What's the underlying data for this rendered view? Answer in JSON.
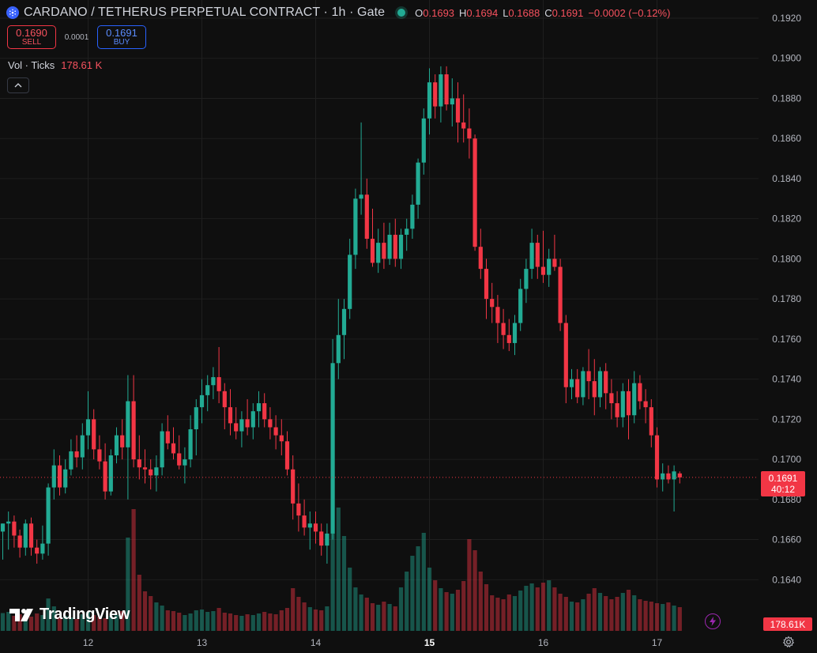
{
  "header": {
    "title": "CARDANO / TETHERUS PERPETUAL CONTRACT · 1h · Gate",
    "symbol_icon": "cardano-icon",
    "ohlc": {
      "o_label": "O",
      "o_value": "0.1693",
      "h_label": "H",
      "h_value": "0.1694",
      "l_label": "L",
      "l_value": "0.1688",
      "c_label": "C",
      "c_value": "0.1691",
      "change": "−0.0002 (−0.12%)"
    }
  },
  "trade": {
    "sell_price": "0.1690",
    "sell_label": "SELL",
    "spread": "0.0001",
    "buy_price": "0.1691",
    "buy_label": "BUY"
  },
  "volume_legend": {
    "label": "Vol · Ticks",
    "value": "178.61 K"
  },
  "price_badge": {
    "price": "0.1691",
    "countdown": "40:12"
  },
  "volume_badge": {
    "value": "178.61K"
  },
  "branding": {
    "logo_text": "TradingView"
  },
  "colors": {
    "up": "#22ab94",
    "down": "#f23645",
    "background": "#0f0f0f",
    "grid": "#1f1f1f",
    "axis_text": "#b2b5be"
  },
  "chart_data": {
    "type": "candlestick",
    "interval": "1h",
    "y_axis": {
      "min": 0.162,
      "max": 0.192,
      "ticks": [
        "0.1920",
        "0.1900",
        "0.1880",
        "0.1860",
        "0.1840",
        "0.1820",
        "0.1800",
        "0.1780",
        "0.1760",
        "0.1740",
        "0.1720",
        "0.1700",
        "0.1680",
        "0.1660",
        "0.1640"
      ]
    },
    "x_axis": {
      "labels": [
        {
          "text": "12",
          "index": 15
        },
        {
          "text": "13",
          "index": 35
        },
        {
          "text": "14",
          "index": 55
        },
        {
          "text": "15",
          "index": 75,
          "bold": true
        },
        {
          "text": "16",
          "index": 95
        },
        {
          "text": "17",
          "index": 115
        }
      ]
    },
    "current_price": 0.1691,
    "ohlc": [
      [
        0.1664,
        0.1668,
        0.165,
        0.1668
      ],
      [
        0.1668,
        0.1674,
        0.1655,
        0.1669
      ],
      [
        0.1669,
        0.1672,
        0.1656,
        0.1662
      ],
      [
        0.1662,
        0.1665,
        0.1651,
        0.1656
      ],
      [
        0.1656,
        0.167,
        0.1652,
        0.1668
      ],
      [
        0.1668,
        0.1671,
        0.1652,
        0.1656
      ],
      [
        0.1656,
        0.166,
        0.1648,
        0.1653
      ],
      [
        0.1653,
        0.1667,
        0.165,
        0.1658
      ],
      [
        0.1658,
        0.1688,
        0.1652,
        0.1686
      ],
      [
        0.1686,
        0.1705,
        0.168,
        0.1697
      ],
      [
        0.1697,
        0.1702,
        0.1682,
        0.1686
      ],
      [
        0.1686,
        0.17,
        0.1683,
        0.1695
      ],
      [
        0.1695,
        0.171,
        0.1692,
        0.1704
      ],
      [
        0.1704,
        0.1712,
        0.1696,
        0.1701
      ],
      [
        0.1701,
        0.1718,
        0.1695,
        0.1712
      ],
      [
        0.1712,
        0.1734,
        0.1705,
        0.172
      ],
      [
        0.172,
        0.1725,
        0.17,
        0.1705
      ],
      [
        0.1705,
        0.1712,
        0.1695,
        0.1699
      ],
      [
        0.1699,
        0.1708,
        0.168,
        0.1684
      ],
      [
        0.1684,
        0.1705,
        0.1682,
        0.1702
      ],
      [
        0.1702,
        0.1716,
        0.1698,
        0.1712
      ],
      [
        0.1712,
        0.172,
        0.17,
        0.1706
      ],
      [
        0.1706,
        0.1742,
        0.168,
        0.1729
      ],
      [
        0.1729,
        0.1742,
        0.1696,
        0.17
      ],
      [
        0.17,
        0.1712,
        0.169,
        0.1696
      ],
      [
        0.1696,
        0.1705,
        0.1688,
        0.1695
      ],
      [
        0.1695,
        0.17,
        0.1685,
        0.1692
      ],
      [
        0.1692,
        0.1702,
        0.1684,
        0.1696
      ],
      [
        0.1696,
        0.1718,
        0.1692,
        0.1714
      ],
      [
        0.1714,
        0.1722,
        0.1705,
        0.1708
      ],
      [
        0.1708,
        0.1716,
        0.17,
        0.1703
      ],
      [
        0.1703,
        0.1712,
        0.1695,
        0.1697
      ],
      [
        0.1697,
        0.1706,
        0.1688,
        0.17
      ],
      [
        0.17,
        0.1722,
        0.1696,
        0.1715
      ],
      [
        0.1715,
        0.173,
        0.1702,
        0.1726
      ],
      [
        0.1726,
        0.174,
        0.1718,
        0.1732
      ],
      [
        0.1732,
        0.1742,
        0.1724,
        0.1737
      ],
      [
        0.1737,
        0.1746,
        0.173,
        0.1741
      ],
      [
        0.1741,
        0.1756,
        0.1728,
        0.1734
      ],
      [
        0.1734,
        0.1738,
        0.1715,
        0.1726
      ],
      [
        0.1726,
        0.1735,
        0.1712,
        0.1718
      ],
      [
        0.1718,
        0.1726,
        0.171,
        0.1714
      ],
      [
        0.1714,
        0.1724,
        0.1706,
        0.172
      ],
      [
        0.172,
        0.173,
        0.1712,
        0.1716
      ],
      [
        0.1716,
        0.1728,
        0.171,
        0.1724
      ],
      [
        0.1724,
        0.1734,
        0.1716,
        0.1728
      ],
      [
        0.1728,
        0.1733,
        0.1716,
        0.172
      ],
      [
        0.172,
        0.1726,
        0.171,
        0.1716
      ],
      [
        0.1716,
        0.1722,
        0.1705,
        0.1712
      ],
      [
        0.1712,
        0.172,
        0.1702,
        0.1709
      ],
      [
        0.1709,
        0.1714,
        0.1692,
        0.1695
      ],
      [
        0.1695,
        0.1702,
        0.167,
        0.1678
      ],
      [
        0.1678,
        0.1688,
        0.1664,
        0.1672
      ],
      [
        0.1672,
        0.168,
        0.1662,
        0.1666
      ],
      [
        0.1666,
        0.1674,
        0.1655,
        0.1668
      ],
      [
        0.1668,
        0.1674,
        0.1658,
        0.1664
      ],
      [
        0.1664,
        0.1668,
        0.1652,
        0.1657
      ],
      [
        0.1657,
        0.1668,
        0.1648,
        0.1663
      ],
      [
        0.1663,
        0.176,
        0.166,
        0.1748
      ],
      [
        0.1748,
        0.178,
        0.174,
        0.1762
      ],
      [
        0.1762,
        0.178,
        0.175,
        0.1775
      ],
      [
        0.1775,
        0.181,
        0.177,
        0.1802
      ],
      [
        0.1802,
        0.1835,
        0.1795,
        0.183
      ],
      [
        0.183,
        0.1868,
        0.1822,
        0.1832
      ],
      [
        0.1832,
        0.184,
        0.1805,
        0.181
      ],
      [
        0.181,
        0.1825,
        0.1796,
        0.1798
      ],
      [
        0.1798,
        0.1815,
        0.1793,
        0.1808
      ],
      [
        0.1808,
        0.1818,
        0.1795,
        0.18
      ],
      [
        0.18,
        0.1818,
        0.1797,
        0.1812
      ],
      [
        0.1812,
        0.182,
        0.1796,
        0.18
      ],
      [
        0.18,
        0.1815,
        0.1795,
        0.1812
      ],
      [
        0.1812,
        0.182,
        0.1804,
        0.1815
      ],
      [
        0.1815,
        0.1832,
        0.181,
        0.1827
      ],
      [
        0.1827,
        0.185,
        0.182,
        0.1848
      ],
      [
        0.1848,
        0.1875,
        0.1842,
        0.187
      ],
      [
        0.187,
        0.1895,
        0.1862,
        0.1888
      ],
      [
        0.1888,
        0.1892,
        0.187,
        0.1876
      ],
      [
        0.1876,
        0.1896,
        0.1868,
        0.1892
      ],
      [
        0.1892,
        0.1896,
        0.1874,
        0.1877
      ],
      [
        0.1877,
        0.189,
        0.1866,
        0.188
      ],
      [
        0.188,
        0.1888,
        0.1858,
        0.1868
      ],
      [
        0.1868,
        0.1882,
        0.1858,
        0.1865
      ],
      [
        0.1865,
        0.1875,
        0.185,
        0.186
      ],
      [
        0.186,
        0.1862,
        0.1804,
        0.1806
      ],
      [
        0.1806,
        0.1815,
        0.179,
        0.1795
      ],
      [
        0.1795,
        0.18,
        0.177,
        0.178
      ],
      [
        0.178,
        0.1788,
        0.1768,
        0.1776
      ],
      [
        0.1776,
        0.1782,
        0.1758,
        0.1768
      ],
      [
        0.1768,
        0.1775,
        0.1755,
        0.1762
      ],
      [
        0.1762,
        0.177,
        0.1754,
        0.1758
      ],
      [
        0.1758,
        0.1772,
        0.1752,
        0.1768
      ],
      [
        0.1768,
        0.179,
        0.1764,
        0.1785
      ],
      [
        0.1785,
        0.18,
        0.1778,
        0.1795
      ],
      [
        0.1795,
        0.1815,
        0.179,
        0.1808
      ],
      [
        0.1808,
        0.1812,
        0.179,
        0.1796
      ],
      [
        0.1796,
        0.1814,
        0.1788,
        0.1792
      ],
      [
        0.1792,
        0.1805,
        0.1786,
        0.18
      ],
      [
        0.18,
        0.1812,
        0.1794,
        0.1796
      ],
      [
        0.1796,
        0.18,
        0.1764,
        0.1768
      ],
      [
        0.1768,
        0.1772,
        0.1728,
        0.1736
      ],
      [
        0.1736,
        0.1745,
        0.173,
        0.174
      ],
      [
        0.174,
        0.1745,
        0.1728,
        0.1731
      ],
      [
        0.1731,
        0.1746,
        0.1727,
        0.1744
      ],
      [
        0.1744,
        0.1755,
        0.173,
        0.1739
      ],
      [
        0.1739,
        0.175,
        0.1722,
        0.1731
      ],
      [
        0.1731,
        0.1746,
        0.1726,
        0.1744
      ],
      [
        0.1744,
        0.1748,
        0.1725,
        0.1733
      ],
      [
        0.1733,
        0.174,
        0.172,
        0.1728
      ],
      [
        0.1728,
        0.1734,
        0.1716,
        0.1721
      ],
      [
        0.1721,
        0.1738,
        0.1716,
        0.1734
      ],
      [
        0.1734,
        0.174,
        0.171,
        0.1722
      ],
      [
        0.1722,
        0.1744,
        0.1718,
        0.1738
      ],
      [
        0.1738,
        0.1742,
        0.1725,
        0.1729
      ],
      [
        0.1729,
        0.1735,
        0.1718,
        0.1726
      ],
      [
        0.1726,
        0.173,
        0.1706,
        0.1712
      ],
      [
        0.1712,
        0.1716,
        0.1686,
        0.169
      ],
      [
        0.169,
        0.1698,
        0.1684,
        0.1693
      ],
      [
        0.1693,
        0.1697,
        0.1688,
        0.169
      ],
      [
        0.169,
        0.1697,
        0.1674,
        0.1694
      ],
      [
        0.1693,
        0.1694,
        0.1688,
        0.1691
      ]
    ],
    "volume": {
      "min": 0,
      "max": 500,
      "values": [
        45,
        48,
        38,
        42,
        40,
        36,
        44,
        40,
        82,
        62,
        36,
        38,
        34,
        30,
        42,
        48,
        40,
        36,
        32,
        38,
        40,
        50,
        236,
        308,
        142,
        100,
        88,
        72,
        64,
        52,
        50,
        46,
        40,
        44,
        52,
        54,
        48,
        50,
        58,
        46,
        44,
        40,
        38,
        42,
        40,
        44,
        48,
        44,
        42,
        52,
        58,
        108,
        86,
        72,
        60,
        54,
        52,
        62,
        248,
        312,
        240,
        160,
        110,
        92,
        84,
        70,
        66,
        74,
        68,
        62,
        110,
        150,
        190,
        214,
        248,
        160,
        128,
        108,
        98,
        94,
        104,
        126,
        232,
        204,
        150,
        118,
        90,
        84,
        80,
        92,
        88,
        102,
        114,
        120,
        110,
        122,
        128,
        110,
        94,
        86,
        74,
        72,
        80,
        94,
        108,
        96,
        88,
        80,
        86,
        96,
        104,
        90,
        80,
        76,
        74,
        70,
        68,
        72,
        64,
        60
      ]
    }
  }
}
